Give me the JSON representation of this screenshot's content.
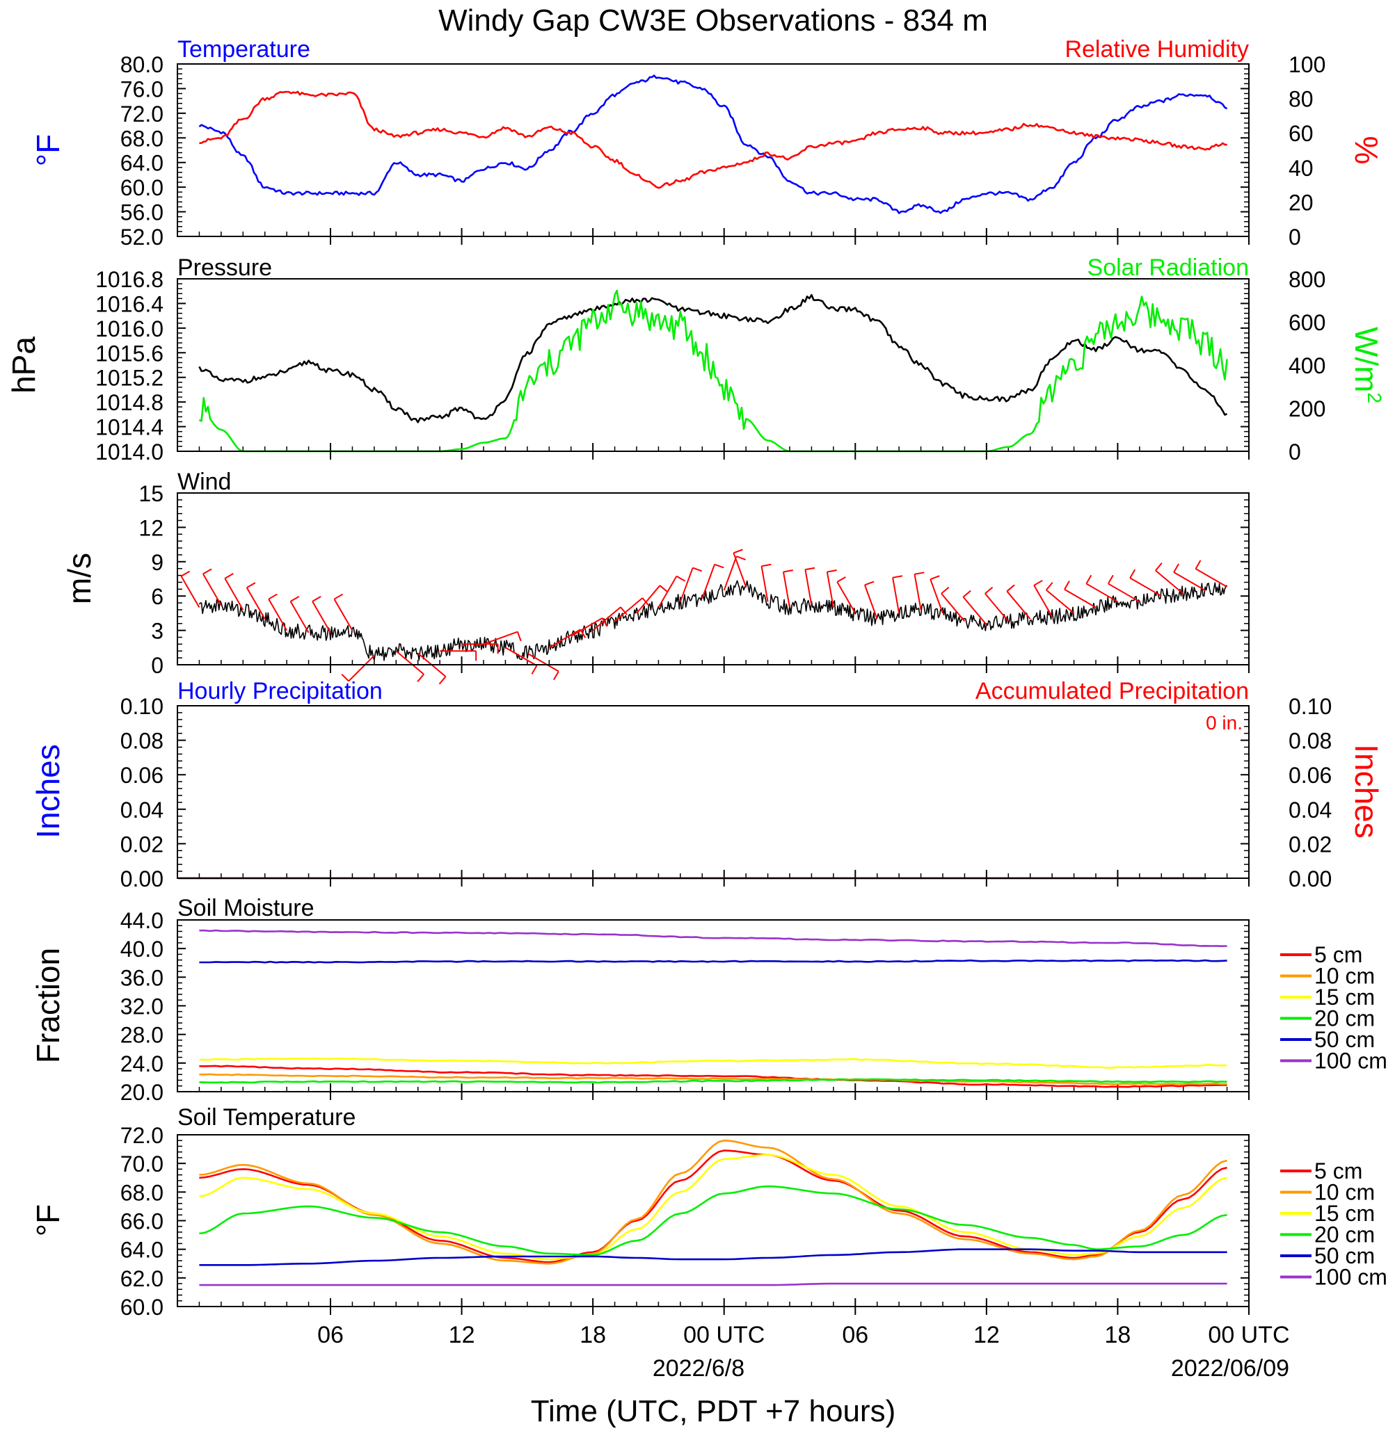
{
  "title": "Windy Gap CW3E Observations - 834 m",
  "x_axis": {
    "label": "Time (UTC, PDT +7 hours)",
    "tick_labels": [
      "06",
      "12",
      "18",
      "00 UTC",
      "06",
      "12",
      "18",
      "00 UTC"
    ],
    "date_labels": [
      "2022/6/8",
      "2022/06/09"
    ]
  },
  "legend_labels": [
    "5 cm",
    "10 cm",
    "15 cm",
    "20 cm",
    "50 cm",
    "100 cm"
  ],
  "colors": {
    "blue": "#0000ff",
    "red": "#ff0000",
    "green": "#00ee00",
    "black": "#000000",
    "orange": "#ff9900",
    "yellow": "#ffff00",
    "darkblue": "#0000cc",
    "purple": "#9933cc"
  },
  "chart_data": [
    {
      "type": "line",
      "panel": "temperature_humidity",
      "left_title": "Temperature",
      "right_title": "Relative Humidity",
      "ylabel_left": "°F",
      "ylabel_right": "%",
      "ylim_left": [
        52,
        80
      ],
      "ylim_right": [
        0,
        100
      ],
      "yticks_left": [
        "80.0",
        "76.0",
        "72.0",
        "68.0",
        "64.0",
        "60.0",
        "56.0",
        "52.0"
      ],
      "yticks_right": [
        "100",
        "80",
        "60",
        "40",
        "20",
        "0"
      ],
      "x_hours": [
        1,
        2,
        3,
        4,
        5,
        6,
        7,
        8,
        9,
        10,
        11,
        12,
        13,
        14,
        15,
        16,
        17,
        18,
        19,
        20,
        21,
        22,
        23,
        24,
        25,
        26,
        27,
        28,
        29,
        30,
        31,
        32,
        33,
        34,
        35,
        36,
        37,
        38,
        39,
        40,
        41,
        42,
        43,
        44,
        45,
        46,
        47,
        48
      ],
      "series": [
        {
          "name": "Temperature",
          "axis": "left",
          "color": "#0000ff",
          "values": [
            70,
            69,
            65,
            60,
            59,
            59,
            59,
            59,
            59,
            64,
            62,
            62,
            61,
            63,
            64,
            63,
            66,
            69,
            72,
            75,
            77,
            78,
            77,
            76,
            73,
            67,
            65,
            61,
            59,
            59,
            58,
            58,
            56,
            57,
            56,
            58,
            59,
            59,
            58,
            60,
            64,
            68,
            71,
            73,
            74,
            75,
            75,
            73
          ]
        },
        {
          "name": "Relative Humidity",
          "axis": "right",
          "color": "#ff0000",
          "values": [
            55,
            57,
            68,
            80,
            84,
            82,
            82,
            83,
            62,
            58,
            60,
            62,
            60,
            58,
            63,
            58,
            63,
            60,
            52,
            44,
            35,
            29,
            32,
            37,
            40,
            43,
            48,
            45,
            52,
            54,
            55,
            60,
            62,
            63,
            60,
            60,
            60,
            62,
            65,
            63,
            60,
            58,
            57,
            56,
            54,
            52,
            51,
            54
          ]
        }
      ]
    },
    {
      "type": "line",
      "panel": "pressure_solar",
      "left_title": "Pressure",
      "right_title": "Solar Radiation",
      "ylabel_left": "hPa",
      "ylabel_right": "W/m",
      "ylabel_right_superscript": "2",
      "ylim_left": [
        1014.0,
        1016.8
      ],
      "ylim_right": [
        0,
        800
      ],
      "yticks_left": [
        "1016.8",
        "1016.4",
        "1016.0",
        "1015.6",
        "1015.2",
        "1014.8",
        "1014.4",
        "1014.0"
      ],
      "yticks_right": [
        "800",
        "600",
        "400",
        "200",
        "0"
      ],
      "x_hours": [
        1,
        2,
        3,
        4,
        5,
        6,
        7,
        8,
        9,
        10,
        11,
        12,
        13,
        14,
        15,
        16,
        17,
        18,
        19,
        20,
        21,
        22,
        23,
        24,
        25,
        26,
        27,
        28,
        29,
        30,
        31,
        32,
        33,
        34,
        35,
        36,
        37,
        38,
        39,
        40,
        41,
        42,
        43,
        44,
        45,
        46,
        47,
        48
      ],
      "series": [
        {
          "name": "Pressure",
          "axis": "left",
          "color": "#000000",
          "values": [
            1015.35,
            1015.15,
            1015.15,
            1015.2,
            1015.3,
            1015.45,
            1015.3,
            1015.25,
            1015.0,
            1014.7,
            1014.5,
            1014.55,
            1014.7,
            1014.5,
            1014.85,
            1015.6,
            1016.05,
            1016.2,
            1016.3,
            1016.4,
            1016.45,
            1016.45,
            1016.3,
            1016.25,
            1016.2,
            1016.15,
            1016.1,
            1016.3,
            1016.5,
            1016.3,
            1016.3,
            1016.1,
            1015.7,
            1015.4,
            1015.1,
            1014.9,
            1014.85,
            1014.85,
            1015.0,
            1015.5,
            1015.8,
            1015.65,
            1015.85,
            1015.65,
            1015.6,
            1015.3,
            1015.0,
            1014.6
          ]
        },
        {
          "name": "Solar Radiation",
          "axis": "right",
          "color": "#00ee00",
          "values": [
            200,
            100,
            0,
            0,
            0,
            0,
            0,
            0,
            0,
            0,
            0,
            0,
            10,
            40,
            60,
            300,
            400,
            500,
            600,
            680,
            650,
            600,
            580,
            450,
            300,
            150,
            50,
            0,
            0,
            0,
            0,
            0,
            0,
            0,
            0,
            0,
            0,
            20,
            80,
            300,
            420,
            520,
            600,
            650,
            620,
            580,
            500,
            400
          ]
        }
      ]
    },
    {
      "type": "line",
      "panel": "wind",
      "left_title": "Wind",
      "ylabel_left": "m/s",
      "ylim_left": [
        0,
        15
      ],
      "yticks_left": [
        "15",
        "12",
        "9",
        "6",
        "3",
        "0"
      ],
      "x_hours": [
        1,
        2,
        3,
        4,
        5,
        6,
        7,
        8,
        9,
        10,
        11,
        12,
        13,
        14,
        15,
        16,
        17,
        18,
        19,
        20,
        21,
        22,
        23,
        24,
        25,
        26,
        27,
        28,
        29,
        30,
        31,
        32,
        33,
        34,
        35,
        36,
        37,
        38,
        39,
        40,
        41,
        42,
        43,
        44,
        45,
        46,
        47,
        48
      ],
      "series": [
        {
          "name": "Wind speed",
          "axis": "left",
          "color": "#000000",
          "values": [
            5.0,
            5.2,
            4.8,
            4.0,
            3.0,
            2.8,
            2.8,
            3.0,
            0.8,
            1.2,
            1.0,
            1.2,
            1.8,
            1.8,
            1.5,
            1.0,
            1.5,
            2.5,
            3.0,
            3.8,
            4.5,
            5.0,
            5.5,
            5.8,
            6.5,
            6.8,
            5.5,
            5.0,
            5.2,
            5.0,
            4.5,
            4.0,
            4.5,
            4.8,
            4.5,
            3.8,
            3.5,
            3.8,
            4.0,
            4.2,
            4.5,
            5.0,
            5.5,
            5.5,
            6.0,
            6.2,
            6.5,
            6.8
          ]
        }
      ],
      "barb_directions_deg": [
        330,
        330,
        330,
        330,
        330,
        330,
        330,
        330,
        225,
        130,
        130,
        90,
        90,
        70,
        120,
        120,
        60,
        60,
        50,
        50,
        40,
        30,
        20,
        20,
        20,
        340,
        350,
        350,
        350,
        350,
        330,
        340,
        350,
        350,
        340,
        320,
        320,
        320,
        320,
        330,
        310,
        300,
        300,
        300,
        300,
        310,
        300,
        300
      ]
    },
    {
      "type": "line",
      "panel": "precipitation",
      "left_title": "Hourly Precipitation",
      "right_title": "Accumulated Precipitation",
      "annotation": "0 in.",
      "ylabel_left": "Inches",
      "ylabel_right": "Inches",
      "ylim_left": [
        0,
        0.1
      ],
      "ylim_right": [
        0,
        0.1
      ],
      "yticks_left": [
        "0.10",
        "0.08",
        "0.06",
        "0.04",
        "0.02",
        "0.00"
      ],
      "yticks_right": [
        "0.10",
        "0.08",
        "0.06",
        "0.04",
        "0.02",
        "0.00"
      ],
      "series": [
        {
          "name": "Hourly Precipitation",
          "axis": "left",
          "color": "#0000ff",
          "values": [
            0,
            0
          ]
        },
        {
          "name": "Accumulated Precipitation",
          "axis": "right",
          "color": "#ff0000",
          "values": [
            0,
            0
          ]
        }
      ]
    },
    {
      "type": "line",
      "panel": "soil_moisture",
      "left_title": "Soil Moisture",
      "ylabel_left": "Fraction",
      "ylim_left": [
        20,
        44
      ],
      "yticks_left": [
        "44.0",
        "40.0",
        "36.0",
        "32.0",
        "28.0",
        "24.0",
        "20.0"
      ],
      "x_hours": [
        1,
        7,
        13,
        19,
        25,
        31,
        37,
        43,
        48
      ],
      "series": [
        {
          "name": "5 cm",
          "color": "#ff0000",
          "values": [
            23.6,
            23.2,
            22.7,
            22.3,
            22.2,
            21.6,
            21.0,
            20.7,
            20.9
          ]
        },
        {
          "name": "10 cm",
          "color": "#ff9900",
          "values": [
            22.4,
            22.2,
            22.0,
            21.9,
            21.8,
            21.7,
            21.4,
            21.1,
            21.1
          ]
        },
        {
          "name": "15 cm",
          "color": "#ffff00",
          "values": [
            24.5,
            24.6,
            24.3,
            24.0,
            24.3,
            24.5,
            23.9,
            23.4,
            23.7
          ]
        },
        {
          "name": "20 cm",
          "color": "#00ee00",
          "values": [
            21.3,
            21.4,
            21.4,
            21.3,
            21.5,
            21.7,
            21.6,
            21.4,
            21.4
          ]
        },
        {
          "name": "50 cm",
          "color": "#0000cc",
          "values": [
            38.1,
            38.1,
            38.2,
            38.2,
            38.2,
            38.2,
            38.3,
            38.3,
            38.3
          ]
        },
        {
          "name": "100 cm",
          "color": "#9933cc",
          "values": [
            42.5,
            42.3,
            42.2,
            42.0,
            41.5,
            41.2,
            41.0,
            40.8,
            40.3
          ]
        }
      ]
    },
    {
      "type": "line",
      "panel": "soil_temperature",
      "left_title": "Soil Temperature",
      "ylabel_left": "°F",
      "ylim_left": [
        60,
        72
      ],
      "yticks_left": [
        "72.0",
        "70.0",
        "68.0",
        "66.0",
        "64.0",
        "62.0",
        "60.0"
      ],
      "x_hours": [
        1,
        3,
        6,
        9,
        12,
        15,
        17,
        19,
        21,
        23,
        25,
        27,
        30,
        33,
        36,
        39,
        41,
        42,
        44,
        46,
        48
      ],
      "series": [
        {
          "name": "5 cm",
          "color": "#ff0000",
          "values": [
            69.0,
            69.6,
            68.5,
            66.5,
            64.6,
            63.4,
            63.1,
            63.8,
            66.0,
            68.8,
            70.9,
            70.6,
            68.8,
            66.7,
            64.9,
            63.8,
            63.4,
            63.6,
            65.2,
            67.5,
            69.7
          ]
        },
        {
          "name": "10 cm",
          "color": "#ff9900",
          "values": [
            69.2,
            69.9,
            68.6,
            66.4,
            64.4,
            63.2,
            63.0,
            63.7,
            66.1,
            69.3,
            71.6,
            71.1,
            68.9,
            66.5,
            64.7,
            63.7,
            63.3,
            63.5,
            65.3,
            67.8,
            70.2
          ]
        },
        {
          "name": "15 cm",
          "color": "#ffff00",
          "values": [
            67.7,
            69.0,
            68.2,
            66.5,
            64.9,
            63.7,
            63.3,
            63.6,
            65.4,
            68.0,
            70.3,
            70.6,
            69.2,
            67.0,
            65.2,
            64.0,
            63.6,
            63.7,
            64.9,
            66.9,
            69.0
          ]
        },
        {
          "name": "20 cm",
          "color": "#00ee00",
          "values": [
            65.1,
            66.5,
            67.0,
            66.2,
            65.2,
            64.2,
            63.7,
            63.6,
            64.6,
            66.5,
            67.9,
            68.4,
            67.9,
            66.8,
            65.7,
            64.8,
            64.3,
            64.0,
            64.2,
            65.0,
            66.4
          ]
        },
        {
          "name": "50 cm",
          "color": "#0000cc",
          "values": [
            62.9,
            62.9,
            63.0,
            63.2,
            63.4,
            63.5,
            63.5,
            63.5,
            63.4,
            63.3,
            63.3,
            63.4,
            63.6,
            63.8,
            64.0,
            64.0,
            63.9,
            63.9,
            63.8,
            63.8,
            63.8
          ]
        },
        {
          "name": "100 cm",
          "color": "#9933cc",
          "values": [
            61.5,
            61.5,
            61.5,
            61.5,
            61.5,
            61.5,
            61.5,
            61.5,
            61.5,
            61.5,
            61.5,
            61.5,
            61.6,
            61.6,
            61.6,
            61.6,
            61.6,
            61.6,
            61.6,
            61.6,
            61.6
          ]
        }
      ]
    }
  ]
}
